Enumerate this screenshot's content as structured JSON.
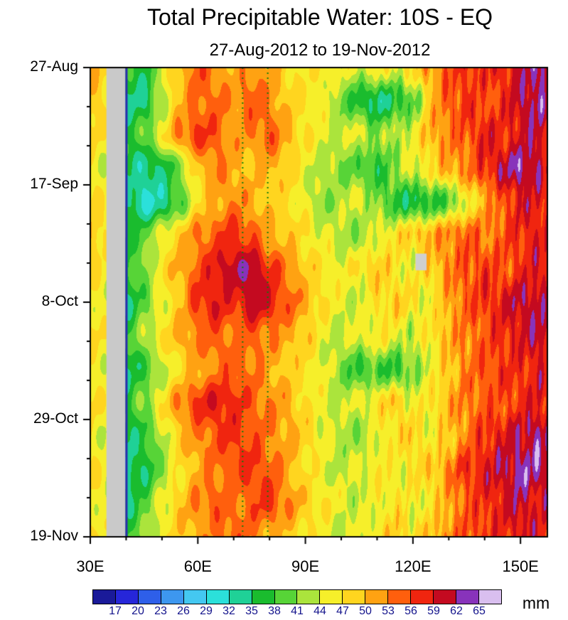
{
  "chart_data": {
    "type": "heatmap",
    "title": "Total Precipitable Water: 10S - EQ",
    "subtitle": "27-Aug-2012 to 19-Nov-2012",
    "x_tick_labels": [
      "30E",
      "60E",
      "90E",
      "120E",
      "150E"
    ],
    "x_tick_lons": [
      30,
      60,
      90,
      120,
      150
    ],
    "x_minor_step": 10,
    "xlim": [
      30,
      157.5
    ],
    "y_ticks": [
      {
        "label": "27-Aug",
        "day": 0
      },
      {
        "label": "17-Sep",
        "day": 21
      },
      {
        "label": "8-Oct",
        "day": 42
      },
      {
        "label": "29-Oct",
        "day": 63
      },
      {
        "label": "19-Nov",
        "day": 84
      }
    ],
    "y_minor_step_days": 7,
    "ylim_days": [
      0,
      84
    ],
    "colorbar": {
      "levels": [
        17,
        20,
        23,
        26,
        29,
        32,
        35,
        38,
        41,
        44,
        47,
        50,
        53,
        56,
        59,
        62,
        65
      ],
      "colors": [
        "#1A1A99",
        "#2626D9",
        "#2E5FE9",
        "#3D97EF",
        "#44C8F1",
        "#2BE0DA",
        "#1FD197",
        "#1ABC2E",
        "#57D437",
        "#ABE43C",
        "#F6EF2A",
        "#FFD51F",
        "#FFA212",
        "#FF5F0D",
        "#F0250F",
        "#C40A20",
        "#8833BB",
        "#D9BFEF"
      ],
      "units": "mm"
    },
    "grid": {
      "lons": [
        30,
        35,
        40,
        45,
        50,
        55,
        60,
        65,
        70,
        75,
        80,
        85,
        90,
        95,
        100,
        105,
        110,
        115,
        120,
        125,
        130,
        135,
        140,
        145,
        150,
        155,
        157
      ],
      "days": [
        0,
        6,
        12,
        18,
        24,
        30,
        36,
        42,
        48,
        54,
        60,
        66,
        72,
        78,
        84
      ],
      "values": [
        [
          51,
          48,
          37,
          36,
          44,
          50,
          55,
          53,
          50,
          53,
          51,
          48,
          46,
          47,
          45,
          44,
          46,
          45,
          48,
          52,
          55,
          57,
          57,
          58,
          60,
          63,
          63
        ],
        [
          50,
          47,
          35,
          34,
          43,
          50,
          54,
          54,
          52,
          55,
          53,
          49,
          47,
          45,
          41,
          36,
          34,
          36,
          39,
          49,
          55,
          57,
          55,
          57,
          61,
          63,
          61
        ],
        [
          48,
          46,
          36,
          40,
          46,
          53,
          57,
          55,
          51,
          53,
          55,
          51,
          47,
          45,
          43,
          45,
          41,
          43,
          45,
          51,
          53,
          55,
          59,
          57,
          59,
          61,
          59
        ],
        [
          46,
          44,
          36,
          33,
          35,
          41,
          49,
          53,
          51,
          49,
          51,
          49,
          45,
          43,
          41,
          39,
          37,
          41,
          45,
          47,
          51,
          53,
          57,
          61,
          63,
          61,
          59
        ],
        [
          48,
          46,
          35,
          31,
          33,
          39,
          47,
          51,
          53,
          51,
          49,
          47,
          45,
          41,
          43,
          45,
          41,
          37,
          35,
          37,
          39,
          45,
          51,
          55,
          59,
          59,
          57
        ],
        [
          50,
          47,
          37,
          39,
          45,
          49,
          53,
          55,
          57,
          55,
          51,
          49,
          47,
          45,
          43,
          41,
          45,
          47,
          49,
          51,
          53,
          55,
          53,
          55,
          57,
          59,
          57
        ],
        [
          48,
          46,
          37,
          41,
          47,
          51,
          55,
          59,
          61,
          62,
          57,
          53,
          49,
          47,
          45,
          47,
          49,
          47,
          45,
          49,
          53,
          55,
          57,
          55,
          57,
          59,
          59
        ],
        [
          46,
          45,
          35,
          39,
          45,
          49,
          57,
          59,
          57,
          61,
          59,
          55,
          51,
          47,
          45,
          43,
          47,
          49,
          47,
          45,
          51,
          55,
          57,
          59,
          61,
          61,
          59
        ],
        [
          48,
          46,
          37,
          43,
          47,
          51,
          53,
          55,
          53,
          55,
          53,
          51,
          49,
          45,
          43,
          45,
          47,
          45,
          43,
          47,
          51,
          53,
          55,
          57,
          59,
          61,
          61
        ],
        [
          46,
          45,
          35,
          37,
          43,
          47,
          51,
          53,
          55,
          53,
          51,
          49,
          47,
          45,
          41,
          37,
          39,
          37,
          41,
          45,
          49,
          53,
          55,
          57,
          57,
          59,
          59
        ],
        [
          48,
          46,
          37,
          41,
          47,
          53,
          57,
          59,
          57,
          55,
          53,
          51,
          47,
          45,
          43,
          45,
          47,
          49,
          45,
          47,
          51,
          53,
          55,
          55,
          57,
          59,
          57
        ],
        [
          46,
          44,
          35,
          37,
          43,
          49,
          53,
          55,
          57,
          55,
          53,
          51,
          49,
          45,
          43,
          41,
          45,
          47,
          49,
          45,
          49,
          53,
          57,
          59,
          61,
          63,
          61
        ],
        [
          48,
          45,
          33,
          35,
          41,
          47,
          51,
          53,
          55,
          57,
          55,
          51,
          47,
          45,
          43,
          45,
          47,
          45,
          47,
          49,
          53,
          57,
          59,
          61,
          63,
          63,
          61
        ],
        [
          46,
          45,
          35,
          39,
          45,
          49,
          53,
          55,
          53,
          55,
          57,
          53,
          49,
          47,
          45,
          43,
          45,
          47,
          45,
          47,
          51,
          55,
          57,
          59,
          61,
          59,
          59
        ],
        [
          48,
          45,
          37,
          41,
          45,
          49,
          51,
          53,
          55,
          53,
          51,
          49,
          47,
          45,
          43,
          45,
          47,
          49,
          47,
          49,
          53,
          55,
          57,
          57,
          59,
          59,
          57
        ]
      ]
    },
    "overlays": {
      "gray_band": {
        "lon0": 34.5,
        "lon1": 39.8,
        "color": "#c9c9c9"
      },
      "coast_line": {
        "lon": 39.8,
        "color": "#2B2BB0",
        "width": 3
      },
      "missing_patch": {
        "lon0": 120.7,
        "lon1": 123.8,
        "day0": 33.3,
        "day1": 36.3,
        "color": "#cfcfcf"
      },
      "dashed_lines": {
        "lons": [
          72.5,
          79.5
        ],
        "color": "#0B7D0B",
        "style": "dotted"
      }
    }
  }
}
